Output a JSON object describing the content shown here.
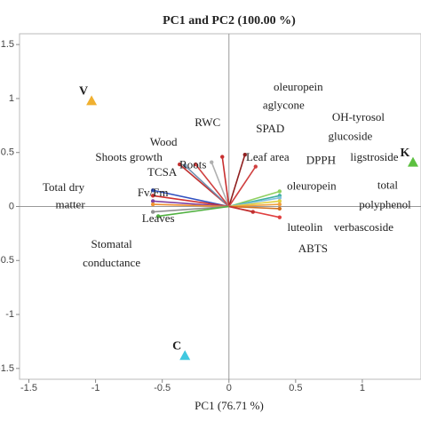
{
  "chart_data": {
    "type": "biplot",
    "title": "PC1 and PC2 (100.00 %)",
    "x_label": "PC1 (76.71 %)",
    "xlim": [
      -1.57,
      1.44
    ],
    "ylim": [
      -1.6,
      1.6
    ],
    "xticks": [
      -1.5,
      -1,
      -0.5,
      0,
      0.5,
      1
    ],
    "yticks": [
      -1.5,
      -1,
      -0.5,
      0,
      0.5,
      1,
      1.5
    ],
    "points": [
      {
        "name": "V",
        "x": -1.03,
        "y": 0.98,
        "color": "#f0b030"
      },
      {
        "name": "K",
        "x": 1.38,
        "y": 0.41,
        "color": "#5cc040"
      },
      {
        "name": "C",
        "x": -0.33,
        "y": -1.38,
        "color": "#40c8e0"
      }
    ],
    "loadings": {
      "x": [
        -0.37,
        -0.33,
        -0.25,
        -0.13,
        -0.05,
        0.12,
        0.2,
        -0.57,
        -0.57,
        -0.57,
        -0.57,
        -0.57,
        -0.53,
        0.38,
        0.38,
        0.38,
        0.38,
        0.38,
        0.38,
        0.38,
        0.18
      ],
      "y": [
        0.39,
        0.38,
        0.39,
        0.41,
        0.46,
        0.48,
        0.37,
        0.15,
        0.1,
        0.05,
        0.02,
        -0.05,
        -0.09,
        0.14,
        0.1,
        0.08,
        0.05,
        0.02,
        -0.02,
        -0.1,
        -0.05
      ],
      "colors": [
        "#c03030",
        "#7090b0",
        "#d04040",
        "#b0b0b0",
        "#c83030",
        "#902020",
        "#d04040",
        "#3050c0",
        "#d03030",
        "#8040a0",
        "#f09030",
        "#909090",
        "#50b040",
        "#90d060",
        "#40b0a0",
        "#80c0e0",
        "#e0d040",
        "#f0a040",
        "#d07020",
        "#e04040",
        "#c03030"
      ]
    },
    "annotations": [
      {
        "text": "oleuropein",
        "x": 0.52,
        "y": 1.1
      },
      {
        "text": "aglycone",
        "x": 0.41,
        "y": 0.93
      },
      {
        "text": "RWC",
        "x": -0.16,
        "y": 0.77
      },
      {
        "text": "SPAD",
        "x": 0.31,
        "y": 0.71
      },
      {
        "text": "OH-tyrosol",
        "x": 0.97,
        "y": 0.82
      },
      {
        "text": "glucoside",
        "x": 0.91,
        "y": 0.64
      },
      {
        "text": "Wood",
        "x": -0.49,
        "y": 0.59
      },
      {
        "text": "Shoots growth",
        "x": -0.75,
        "y": 0.45
      },
      {
        "text": "Leaf area",
        "x": 0.29,
        "y": 0.45
      },
      {
        "text": "DPPH",
        "x": 0.69,
        "y": 0.42
      },
      {
        "text": "ligstroside",
        "x": 1.09,
        "y": 0.45
      },
      {
        "text": "Roots",
        "x": -0.27,
        "y": 0.38
      },
      {
        "text": "TCSA",
        "x": -0.5,
        "y": 0.31
      },
      {
        "text": "oleuropein",
        "x": 0.62,
        "y": 0.18
      },
      {
        "text": "total",
        "x": 1.19,
        "y": 0.19
      },
      {
        "text": "Total dry",
        "x": -1.24,
        "y": 0.17
      },
      {
        "text": "Fv/Fm",
        "x": -0.57,
        "y": 0.12
      },
      {
        "text": "polyphenol",
        "x": 1.17,
        "y": 0.01
      },
      {
        "text": "matter",
        "x": -1.19,
        "y": 0.01
      },
      {
        "text": "Leaves",
        "x": -0.53,
        "y": -0.12
      },
      {
        "text": "luteolin",
        "x": 0.57,
        "y": -0.2
      },
      {
        "text": "verbascoside",
        "x": 1.01,
        "y": -0.2
      },
      {
        "text": "ABTS",
        "x": 0.63,
        "y": -0.4
      },
      {
        "text": "Stomatal",
        "x": -0.88,
        "y": -0.36
      },
      {
        "text": "conductance",
        "x": -0.88,
        "y": -0.53
      }
    ]
  }
}
